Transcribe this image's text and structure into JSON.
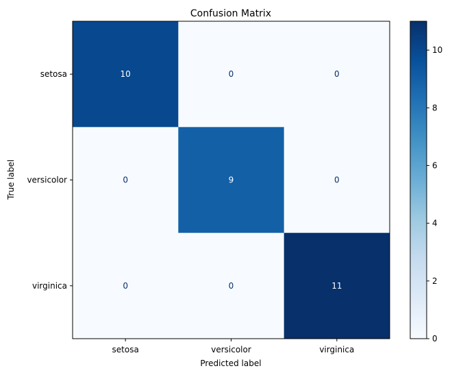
{
  "chart_data": {
    "type": "heatmap",
    "title": "Confusion Matrix",
    "xlabel": "Predicted label",
    "ylabel": "True label",
    "x_categories": [
      "setosa",
      "versicolor",
      "virginica"
    ],
    "y_categories": [
      "setosa",
      "versicolor",
      "virginica"
    ],
    "values": [
      [
        10,
        0,
        0
      ],
      [
        0,
        9,
        0
      ],
      [
        0,
        0,
        11
      ]
    ],
    "colormap": "Blues",
    "colorbar": {
      "range": [
        0,
        11
      ],
      "ticks": [
        0,
        2,
        4,
        6,
        8,
        10
      ]
    },
    "grid": false,
    "legend": "none"
  }
}
